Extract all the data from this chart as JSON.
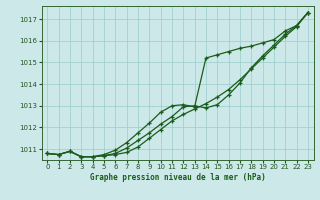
{
  "title": "Graphe pression niveau de la mer (hPa)",
  "bg_color": "#cce8e8",
  "grid_color": "#99cccc",
  "line_color": "#1a5c1a",
  "xlim": [
    -0.5,
    23.5
  ],
  "ylim": [
    1010.5,
    1017.6
  ],
  "yticks": [
    1011,
    1012,
    1013,
    1014,
    1015,
    1016,
    1017
  ],
  "xticks": [
    0,
    1,
    2,
    3,
    4,
    5,
    6,
    7,
    8,
    9,
    10,
    11,
    12,
    13,
    14,
    15,
    16,
    17,
    18,
    19,
    20,
    21,
    22,
    23
  ],
  "series1": [
    1010.8,
    1010.75,
    1010.9,
    1010.65,
    1010.65,
    1010.7,
    1010.75,
    1010.85,
    1011.1,
    1011.5,
    1011.9,
    1012.3,
    1012.6,
    1012.85,
    1013.1,
    1013.4,
    1013.75,
    1014.2,
    1014.7,
    1015.2,
    1015.7,
    1016.2,
    1016.65,
    1017.3
  ],
  "series2": [
    1010.8,
    1010.75,
    1010.9,
    1010.65,
    1010.65,
    1010.7,
    1010.8,
    1011.05,
    1011.4,
    1011.75,
    1012.15,
    1012.5,
    1012.95,
    1013.0,
    1012.9,
    1013.05,
    1013.5,
    1014.05,
    1014.75,
    1015.3,
    1015.8,
    1016.3,
    1016.7,
    1017.3
  ],
  "series3": [
    1010.8,
    1010.75,
    1010.9,
    1010.65,
    1010.65,
    1010.75,
    1010.95,
    1011.3,
    1011.75,
    1012.2,
    1012.7,
    1013.0,
    1013.05,
    1012.95,
    1015.2,
    1015.35,
    1015.5,
    1015.65,
    1015.75,
    1015.9,
    1016.05,
    1016.45,
    1016.7,
    1017.3
  ]
}
